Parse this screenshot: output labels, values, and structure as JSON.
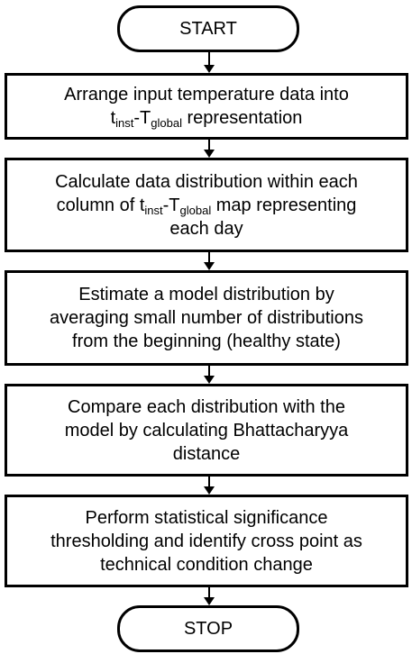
{
  "flowchart": {
    "start_label": "START",
    "step1": {
      "line1": "Arrange input temperature data into",
      "t": "t",
      "t_sub": "inst",
      "dash": "-T",
      "T_sub": "global",
      "tail": " representation"
    },
    "step2": {
      "line1": "Calculate data distribution within each",
      "pre": "column of t",
      "t_sub": "inst",
      "dash": "-T",
      "T_sub": "global",
      "tail": " map representing",
      "line3": "each day"
    },
    "step3": {
      "line1": "Estimate a model distribution by",
      "line2": "averaging small number of distributions",
      "line3": "from the beginning (healthy state)"
    },
    "step4": {
      "line1": "Compare each distribution with the",
      "line2": "model by calculating  Bhattacharyya",
      "line3": "distance"
    },
    "step5": {
      "line1": "Perform statistical significance",
      "line2": "thresholding and identify cross point as",
      "line3": "technical condition change"
    },
    "stop_label": "STOP",
    "colors": {
      "stroke": "#000000",
      "fill": "#ffffff",
      "text": "#000000"
    }
  }
}
